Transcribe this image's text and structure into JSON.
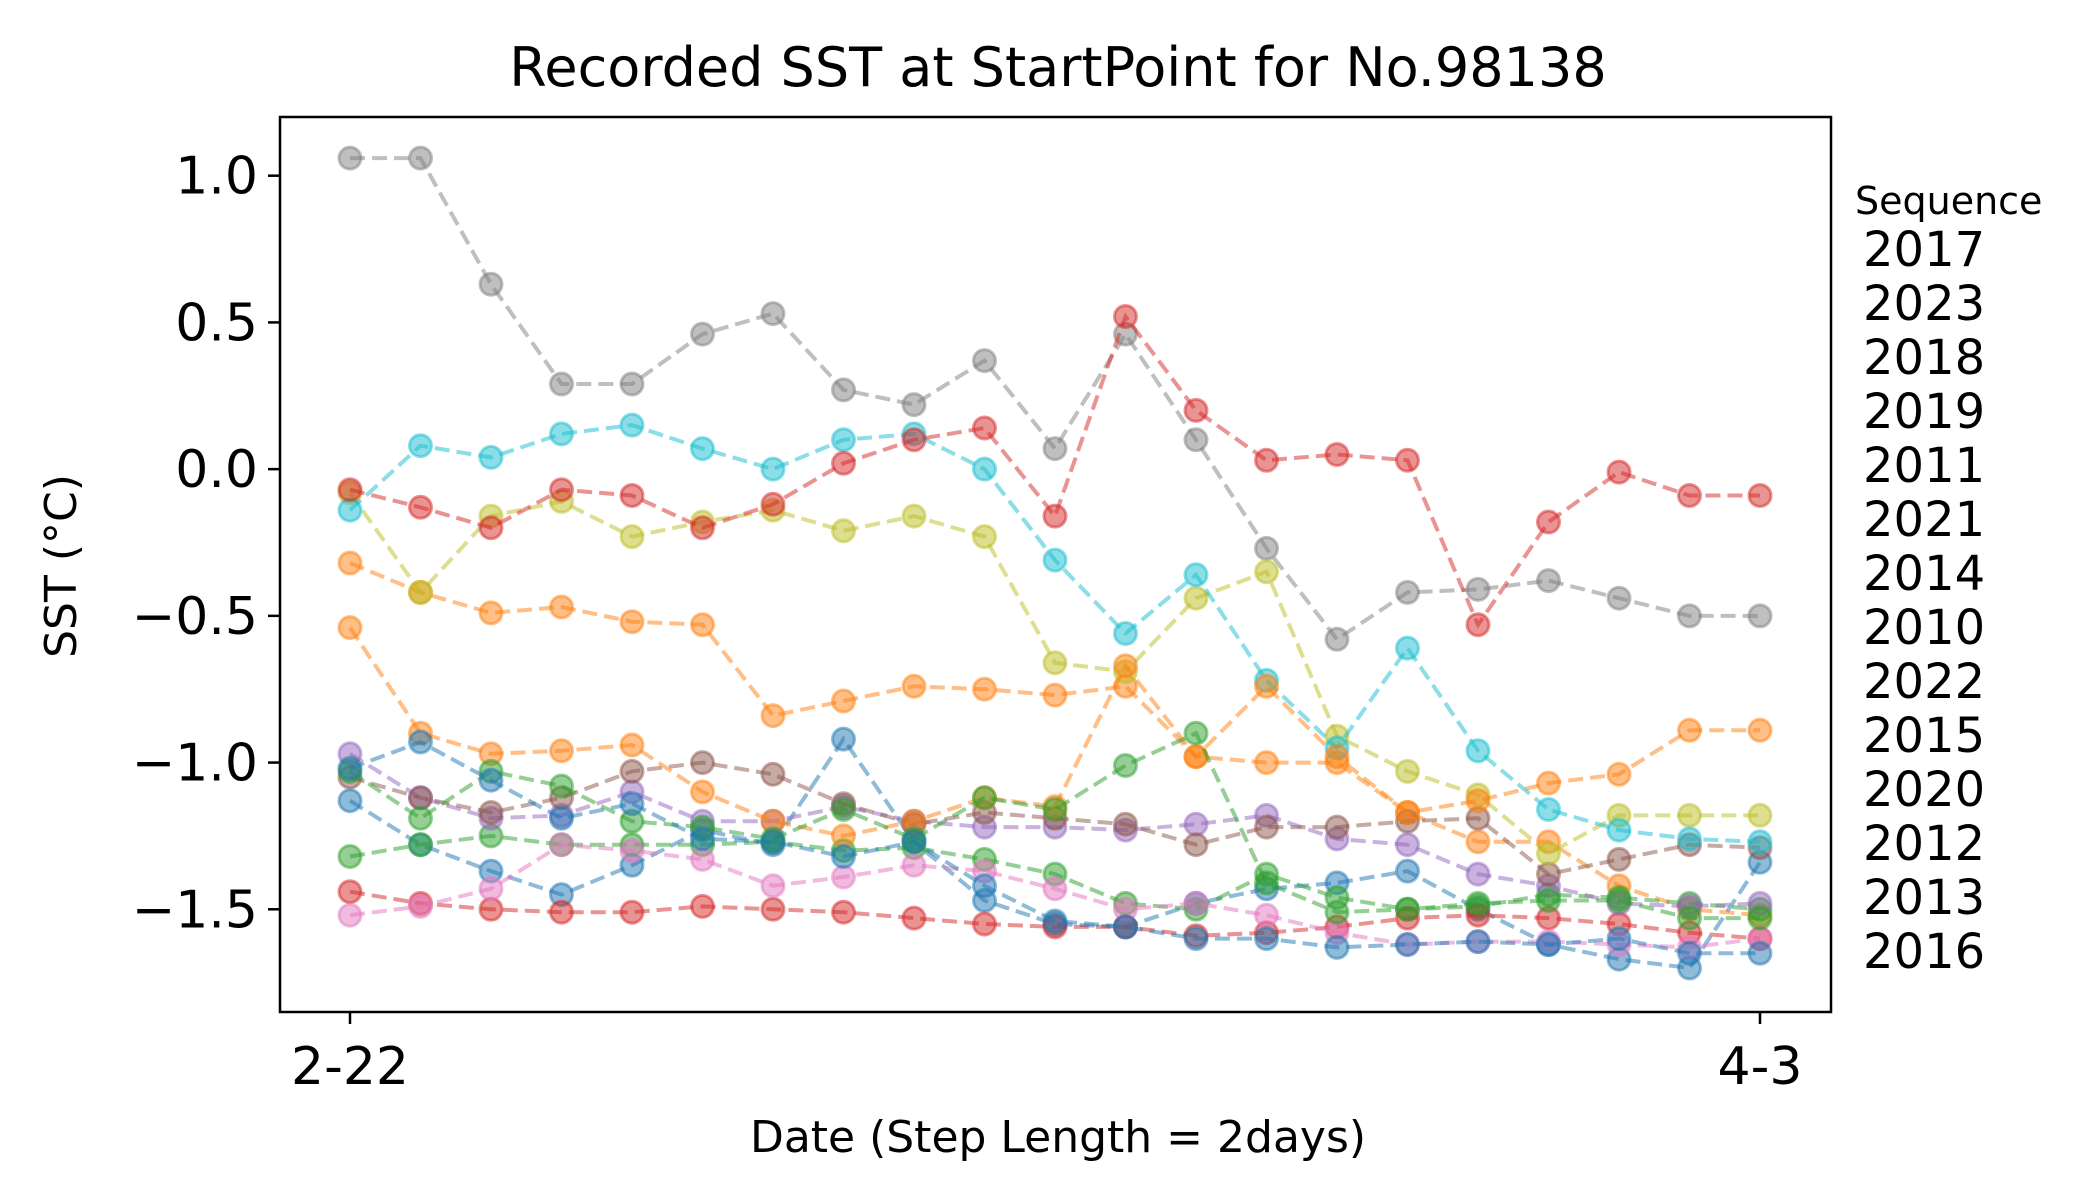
{
  "chart_data": {
    "type": "line",
    "title": "Recorded SST at StartPoint for No.98138",
    "xlabel": "Date (Step Length = 2days)",
    "ylabel": "SST (°C)",
    "xtick_labels": [
      "2-22",
      "4-3"
    ],
    "ylim": [
      -1.85,
      1.2
    ],
    "yticks": [
      1.0,
      0.5,
      0.0,
      -0.5,
      -1.0,
      -1.5
    ],
    "ytick_labels": [
      "1.0",
      "0.5",
      "0.0",
      "−0.5",
      "−1.0",
      "−1.5"
    ],
    "grid": false,
    "legend": {
      "title": "Sequence",
      "placement": "right, outside plot",
      "entries": [
        "2017",
        "2023",
        "2018",
        "2019",
        "2011",
        "2021",
        "2014",
        "2010",
        "2022",
        "2015",
        "2020",
        "2012",
        "2013",
        "2016"
      ]
    },
    "x": [
      "2-22",
      "2-24",
      "2-26",
      "2-28",
      "3-1",
      "3-3",
      "3-5",
      "3-7",
      "3-9",
      "3-11",
      "3-13",
      "3-15",
      "3-17",
      "3-19",
      "3-21",
      "3-23",
      "3-25",
      "3-27",
      "3-29",
      "3-31",
      "4-2"
    ],
    "series": [
      {
        "name": "2017",
        "color": "#1f77b4",
        "values": [
          -1.13,
          -1.28,
          -1.37,
          -1.45,
          -1.35,
          -1.23,
          -1.28,
          -0.92,
          -1.27,
          -1.47,
          -1.55,
          -1.56,
          -1.48,
          -1.43,
          -1.41,
          -1.37,
          -1.5,
          -1.62,
          -1.67,
          -1.7,
          -1.34
        ]
      },
      {
        "name": "2023",
        "color": "#ff7f0e",
        "values": [
          -0.32,
          -0.42,
          -0.49,
          -0.47,
          -0.52,
          -0.53,
          -0.84,
          -0.79,
          -0.74,
          -0.75,
          -0.77,
          -0.74,
          -0.98,
          -1.0,
          -1.0,
          -1.17,
          -1.27,
          -1.27,
          -1.42,
          -1.5,
          -1.52
        ]
      },
      {
        "name": "2018",
        "color": "#2ca02c",
        "values": [
          -1.32,
          -1.28,
          -1.25,
          -1.28,
          -1.28,
          -1.28,
          -1.27,
          -1.3,
          -1.29,
          -1.33,
          -1.38,
          -1.48,
          -1.5,
          -1.38,
          -1.46,
          -1.5,
          -1.49,
          -1.45,
          -1.46,
          -1.48,
          -1.5
        ]
      },
      {
        "name": "2019",
        "color": "#d62728",
        "values": [
          -1.44,
          -1.48,
          -1.5,
          -1.51,
          -1.51,
          -1.49,
          -1.5,
          -1.51,
          -1.53,
          -1.55,
          -1.56,
          -1.56,
          -1.59,
          -1.58,
          -1.56,
          -1.53,
          -1.52,
          -1.53,
          -1.55,
          -1.58,
          -1.6
        ]
      },
      {
        "name": "2011",
        "color": "#9467bd",
        "values": [
          -0.97,
          -1.12,
          -1.19,
          -1.18,
          -1.1,
          -1.2,
          -1.2,
          -1.15,
          -1.2,
          -1.22,
          -1.22,
          -1.23,
          -1.21,
          -1.18,
          -1.26,
          -1.28,
          -1.38,
          -1.42,
          -1.48,
          -1.49,
          -1.48
        ]
      },
      {
        "name": "2021",
        "color": "#8c564b",
        "values": [
          -1.05,
          -1.12,
          -1.17,
          -1.12,
          -1.03,
          -1.0,
          -1.04,
          -1.14,
          -1.21,
          -1.17,
          -1.19,
          -1.21,
          -1.28,
          -1.22,
          -1.22,
          -1.2,
          -1.19,
          -1.38,
          -1.33,
          -1.28,
          -1.29
        ]
      },
      {
        "name": "2014",
        "color": "#e377c2",
        "values": [
          -1.52,
          -1.49,
          -1.43,
          -1.28,
          -1.3,
          -1.33,
          -1.42,
          -1.39,
          -1.35,
          -1.37,
          -1.43,
          -1.5,
          -1.48,
          -1.52,
          -1.58,
          -1.62,
          -1.61,
          -1.61,
          -1.62,
          -1.63,
          -1.6
        ]
      },
      {
        "name": "2010",
        "color": "#7f7f7f",
        "values": [
          1.06,
          1.06,
          0.63,
          0.29,
          0.29,
          0.46,
          0.53,
          0.27,
          0.22,
          0.37,
          0.07,
          0.46,
          0.1,
          -0.27,
          -0.58,
          -0.42,
          -0.41,
          -0.38,
          -0.44,
          -0.5,
          -0.5
        ]
      },
      {
        "name": "2022",
        "color": "#bcbd22",
        "values": [
          -0.08,
          -0.42,
          -0.16,
          -0.11,
          -0.23,
          -0.18,
          -0.14,
          -0.21,
          -0.16,
          -0.23,
          -0.66,
          -0.69,
          -0.44,
          -0.35,
          -0.91,
          -1.03,
          -1.11,
          -1.31,
          -1.18,
          -1.18,
          -1.18
        ]
      },
      {
        "name": "2015",
        "color": "#17becf",
        "values": [
          -0.14,
          0.08,
          0.04,
          0.12,
          0.15,
          0.07,
          0.0,
          0.1,
          0.12,
          0.0,
          -0.31,
          -0.56,
          -0.36,
          -0.72,
          -0.95,
          -0.61,
          -0.96,
          -1.16,
          -1.23,
          -1.26,
          -1.27
        ]
      },
      {
        "name": "2020",
        "color": "#ff7f0e",
        "values": [
          -0.54,
          -0.9,
          -0.97,
          -0.96,
          -0.94,
          -1.1,
          -1.2,
          -1.25,
          -1.2,
          -1.12,
          -1.15,
          -0.67,
          -0.98,
          -0.74,
          -0.98,
          -1.17,
          -1.13,
          -1.07,
          -1.04,
          -0.89,
          -0.89
        ]
      },
      {
        "name": "2012",
        "color": "#2ca02c",
        "values": [
          -1.03,
          -1.19,
          -1.03,
          -1.08,
          -1.2,
          -1.22,
          -1.26,
          -1.16,
          -1.26,
          -1.12,
          -1.16,
          -1.01,
          -0.9,
          -1.41,
          -1.51,
          -1.5,
          -1.48,
          -1.47,
          -1.47,
          -1.53,
          -1.53
        ]
      },
      {
        "name": "2013",
        "color": "#1f77b4",
        "values": [
          -1.02,
          -0.93,
          -1.06,
          -1.19,
          -1.14,
          -1.26,
          -1.27,
          -1.32,
          -1.27,
          -1.42,
          -1.54,
          -1.56,
          -1.6,
          -1.6,
          -1.63,
          -1.62,
          -1.61,
          -1.62,
          -1.6,
          -1.65,
          -1.65
        ]
      },
      {
        "name": "2016",
        "color": "#d62728",
        "values": [
          -0.07,
          -0.13,
          -0.2,
          -0.07,
          -0.09,
          -0.2,
          -0.12,
          0.02,
          0.1,
          0.14,
          -0.16,
          0.52,
          0.2,
          0.03,
          0.05,
          0.03,
          -0.53,
          -0.18,
          -0.01,
          -0.09,
          -0.09
        ]
      }
    ]
  }
}
